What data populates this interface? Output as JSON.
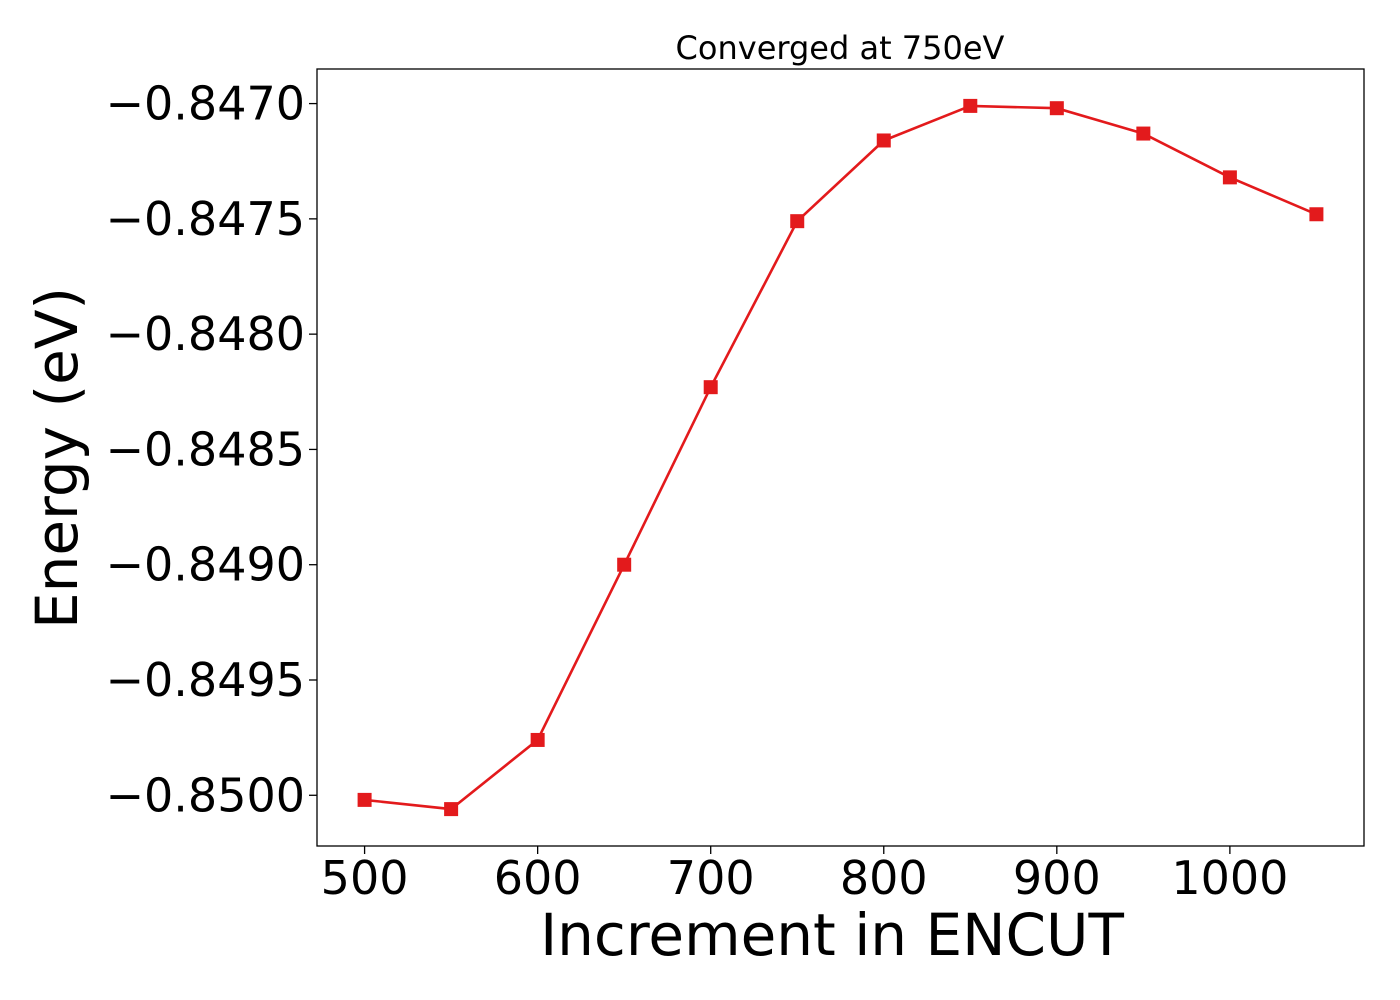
{
  "chart_data": {
    "type": "line",
    "title": "Converged at 750eV",
    "xlabel": "Increment in ENCUT",
    "ylabel": "Energy (eV)",
    "x_ticks": [
      500,
      600,
      700,
      800,
      900,
      1000
    ],
    "x_tick_labels": [
      "500",
      "600",
      "700",
      "800",
      "900",
      "1000"
    ],
    "y_ticks": [
      -0.85,
      -0.8495,
      -0.849,
      -0.8485,
      -0.848,
      -0.8475,
      -0.847
    ],
    "y_tick_labels": [
      "−0.8500",
      "−0.8495",
      "−0.8490",
      "−0.8485",
      "−0.8480",
      "−0.8475",
      "−0.8470"
    ],
    "xlim": [
      472.5,
      1077.5
    ],
    "ylim": [
      -0.85022,
      -0.84685
    ],
    "grid": false,
    "series": [
      {
        "color": "#e31a1c",
        "marker": "square",
        "x": [
          500,
          550,
          600,
          650,
          700,
          750,
          800,
          850,
          900,
          950,
          1000,
          1050
        ],
        "y": [
          -0.85002,
          -0.85006,
          -0.84976,
          -0.849,
          -0.84823,
          -0.84751,
          -0.84716,
          -0.84701,
          -0.84702,
          -0.84713,
          -0.84732,
          -0.84748
        ]
      }
    ]
  }
}
